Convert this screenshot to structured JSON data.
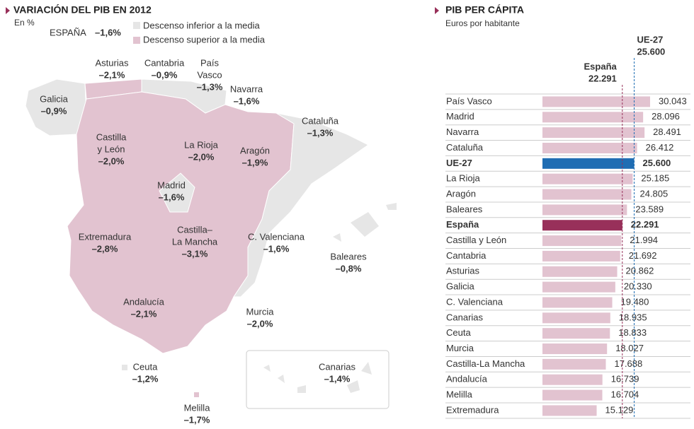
{
  "map": {
    "title": "VARIACIÓN DEL PIB EN 2012",
    "unit": "En %",
    "spain_label": "ESPAÑA",
    "spain_value": "–1,6%",
    "legend": [
      "Descenso inferior a la media",
      "Descenso superior a la media"
    ],
    "regions": [
      {
        "name": [
          "Asturias"
        ],
        "value": "–2,1%"
      },
      {
        "name": [
          "Cantabria"
        ],
        "value": "–0,9%"
      },
      {
        "name": [
          "País",
          "Vasco"
        ],
        "value": "–1,3%"
      },
      {
        "name": [
          "Navarra"
        ],
        "value": "–1,6%"
      },
      {
        "name": [
          "Galicia"
        ],
        "value": "–0,9%"
      },
      {
        "name": [
          "Castilla",
          "y León"
        ],
        "value": "–2,0%"
      },
      {
        "name": [
          "La Rioja"
        ],
        "value": "–2,0%"
      },
      {
        "name": [
          "Cataluña"
        ],
        "value": "–1,3%"
      },
      {
        "name": [
          "Aragón"
        ],
        "value": "–1,9%"
      },
      {
        "name": [
          "Madrid"
        ],
        "value": "–1,6%"
      },
      {
        "name": [
          "Extremadura"
        ],
        "value": "–2,8%"
      },
      {
        "name": [
          "Castilla–",
          "La Mancha"
        ],
        "value": "–3,1%"
      },
      {
        "name": [
          "C. Valenciana"
        ],
        "value": "–1,6%"
      },
      {
        "name": [
          "Baleares"
        ],
        "value": "–0,8%"
      },
      {
        "name": [
          "Andalucía"
        ],
        "value": "–2,1%"
      },
      {
        "name": [
          "Murcia"
        ],
        "value": "–2,0%"
      },
      {
        "name": [
          "Ceuta"
        ],
        "value": "–1,2%"
      },
      {
        "name": [
          "Canarias"
        ],
        "value": "–1,4%"
      },
      {
        "name": [
          "Melilla"
        ],
        "value": "–1,7%"
      }
    ]
  },
  "chart_data": {
    "type": "bar",
    "title": "PIB PER CÁPITA",
    "subtitle": "Euros por habitante",
    "categories": [
      "País Vasco",
      "Madrid",
      "Navarra",
      "Cataluña",
      "UE-27",
      "La Rioja",
      "Aragón",
      "Baleares",
      "España",
      "Castilla y León",
      "Cantabria",
      "Asturias",
      "Galicia",
      "C. Valenciana",
      "Canarias",
      "Ceuta",
      "Murcia",
      "Castilla-La Mancha",
      "Andalucía",
      "Melilla",
      "Extremadura"
    ],
    "values": [
      30043,
      28096,
      28491,
      26412,
      25600,
      25185,
      24805,
      23589,
      22291,
      21994,
      21692,
      20862,
      20330,
      19480,
      18935,
      18833,
      18027,
      17688,
      16739,
      16704,
      15129
    ],
    "value_labels": [
      "30.043",
      "28.096",
      "28.491",
      "26.412",
      "25.600",
      "25.185",
      "24.805",
      "23.589",
      "22.291",
      "21.994",
      "21.692",
      "20.862",
      "20.330",
      "19.480",
      "18.935",
      "18.833",
      "18.027",
      "17.688",
      "16.739",
      "16.704",
      "15.129"
    ],
    "color": "#e2c3d0",
    "colors": [
      null,
      null,
      null,
      null,
      "#1f6db3",
      null,
      null,
      null,
      "#98305a",
      null,
      null,
      null,
      null,
      null,
      null,
      null,
      null,
      null,
      null,
      null,
      null
    ],
    "reference_lines": [
      {
        "name": "España",
        "value": 22291,
        "label": "22.291",
        "color": "#98305a"
      },
      {
        "name": "UE-27",
        "value": 25600,
        "label": "25.600",
        "color": "#1f6db3"
      }
    ]
  }
}
